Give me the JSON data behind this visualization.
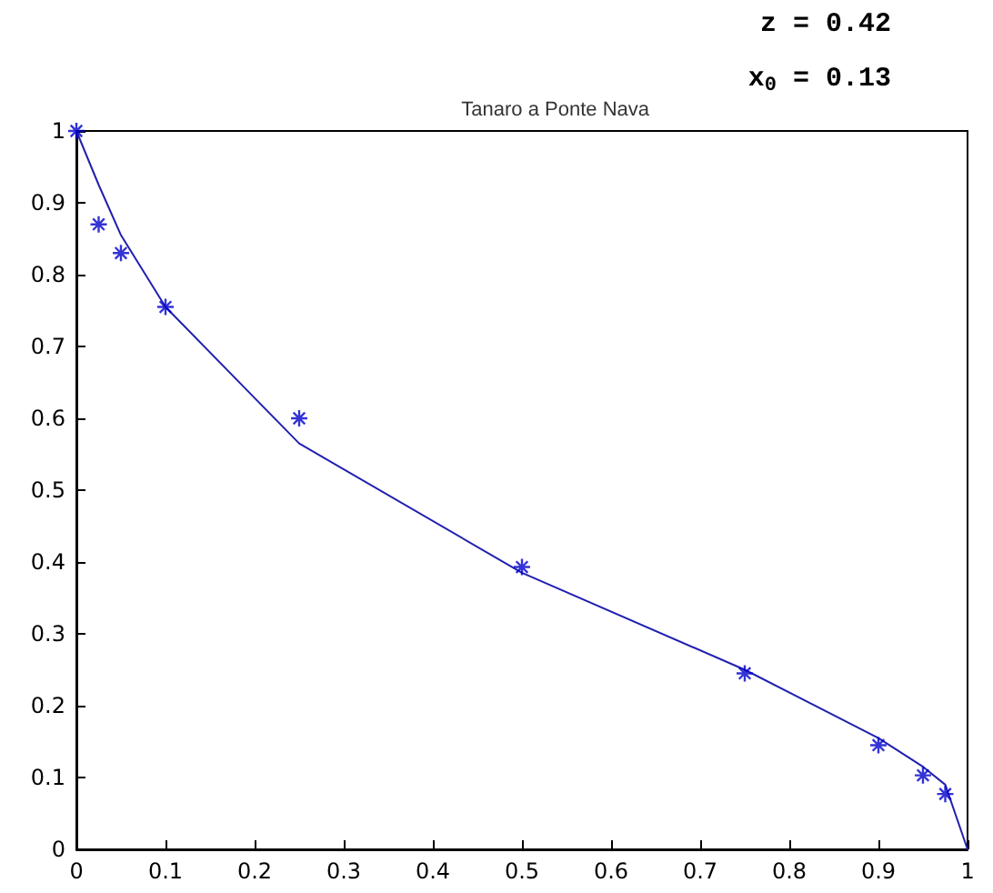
{
  "chart_data": {
    "type": "scatter",
    "title": "Tanaro a Ponte Nava",
    "annotations": [
      "z = 0.42",
      "x$_{0}$ = 0.13"
    ],
    "xlim": [
      0,
      1
    ],
    "xticks": [
      0,
      0.1,
      0.2,
      0.3,
      0.4,
      0.5,
      0.6,
      0.7,
      0.8,
      0.9,
      1
    ],
    "ylim": [
      0,
      1
    ],
    "yticks": [
      0,
      0.1,
      0.2,
      0.3,
      0.4,
      0.5,
      0.6,
      0.7,
      0.8,
      0.9,
      1
    ],
    "grid": false,
    "series": [
      {
        "color": "#0000cc",
        "marker": "cross",
        "x": [
          0,
          0.025,
          0.05,
          0.1,
          0.25,
          0.5,
          0.75,
          0.9,
          0.95,
          0.975
        ],
        "values": [
          1,
          0.87,
          0.83,
          0.755,
          0.6,
          0.393,
          0.245,
          0.145,
          0.103,
          0.077
        ]
      },
      {
        "type": "line",
        "color": "#2020b0",
        "marker": "none",
        "line_style": "solid",
        "x": [
          0,
          0.025,
          0.05,
          0.1,
          0.25,
          0.5,
          0.75,
          0.9,
          0.95,
          0.975,
          1
        ],
        "values": [
          1,
          0.925,
          0.855,
          0.755,
          0.565,
          0.385,
          0.25,
          0.155,
          0.115,
          0.09,
          0
        ]
      }
    ]
  }
}
